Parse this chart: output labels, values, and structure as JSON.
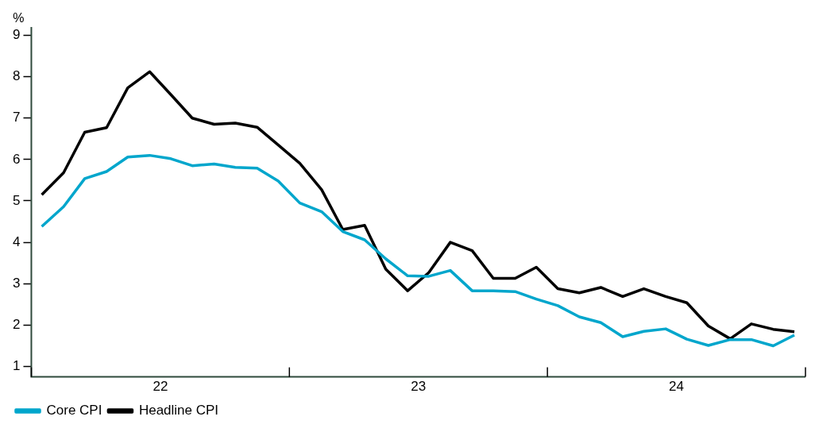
{
  "chart_data": {
    "type": "line",
    "ylabel": "%",
    "x": [
      "2022-01-16",
      "2022-02-15",
      "2022-03-16",
      "2022-04-16",
      "2022-05-16",
      "2022-06-16",
      "2022-07-16",
      "2022-08-16",
      "2022-09-16",
      "2022-10-16",
      "2022-11-16",
      "2022-12-16",
      "2023-01-16",
      "2023-02-15",
      "2023-03-16",
      "2023-04-16",
      "2023-05-16",
      "2023-06-16",
      "2023-07-16",
      "2023-08-16",
      "2023-09-16",
      "2023-10-16",
      "2023-11-16",
      "2023-12-16",
      "2024-01-16",
      "2024-02-15",
      "2024-03-16",
      "2024-04-16",
      "2024-05-16",
      "2024-06-16",
      "2024-07-16",
      "2024-08-16",
      "2024-09-16",
      "2024-10-16",
      "2024-11-16",
      "2024-12-16"
    ],
    "series": [
      {
        "name": "Core CPI",
        "color": "#00a6cc",
        "values": [
          4.38,
          4.86,
          5.54,
          5.71,
          6.06,
          6.1,
          6.02,
          5.85,
          5.89,
          5.81,
          5.79,
          5.48,
          4.95,
          4.74,
          4.26,
          4.06,
          3.6,
          3.19,
          3.18,
          3.32,
          2.83,
          2.83,
          2.81,
          2.63,
          2.47,
          2.2,
          2.06,
          1.72,
          1.85,
          1.91,
          1.66,
          1.51,
          1.65,
          1.65,
          1.5,
          1.76
        ]
      },
      {
        "name": "Headline CPI",
        "color": "#000000",
        "values": [
          5.15,
          5.68,
          6.66,
          6.77,
          7.73,
          8.12,
          7.57,
          7.0,
          6.85,
          6.88,
          6.78,
          6.35,
          5.91,
          5.27,
          4.31,
          4.41,
          3.35,
          2.83,
          3.27,
          4.0,
          3.8,
          3.13,
          3.13,
          3.4,
          2.88,
          2.78,
          2.91,
          2.69,
          2.88,
          2.69,
          2.54,
          1.98,
          1.67,
          2.03,
          1.9,
          1.84
        ]
      }
    ],
    "xlim": [
      "2022-01-01",
      "2025-01-01"
    ],
    "xticks": [
      {
        "value": "2022-01-01",
        "label": null
      },
      {
        "value": "2022-07-01",
        "label": "22"
      },
      {
        "value": "2023-01-01",
        "label": null
      },
      {
        "value": "2023-07-01",
        "label": "23"
      },
      {
        "value": "2024-01-01",
        "label": null
      },
      {
        "value": "2024-07-01",
        "label": "24"
      },
      {
        "value": "2025-01-01",
        "label": null
      }
    ],
    "ylim": [
      0.75,
      9.2
    ],
    "yticks": [
      1,
      2,
      3,
      4,
      5,
      6,
      7,
      8,
      9
    ],
    "grid": false,
    "legend": "bottom left",
    "marker": "none",
    "line_style": "solid"
  }
}
